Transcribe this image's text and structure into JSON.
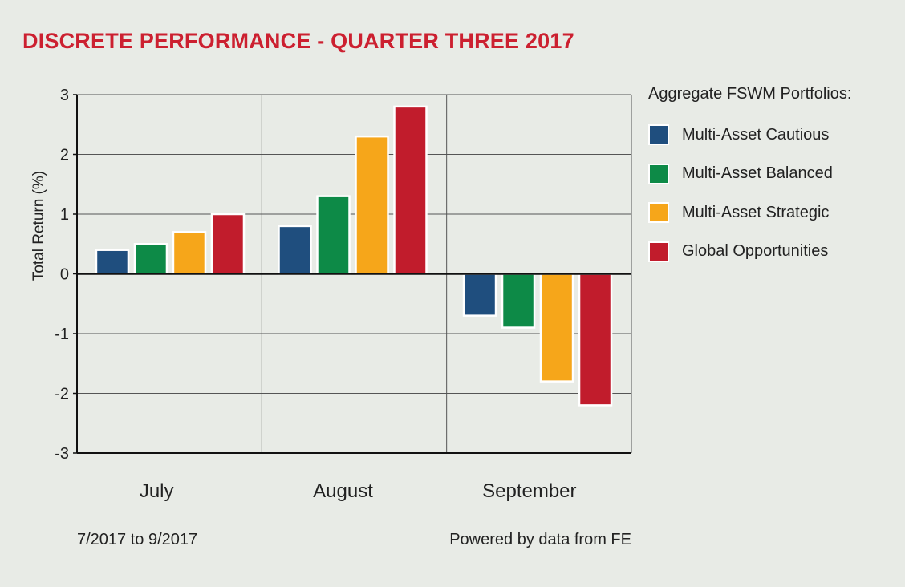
{
  "colors": {
    "title": "#cc2030",
    "background": "#e8ebe6",
    "axis": "#111111",
    "grid": "#555555",
    "bar_border": "#ffffff"
  },
  "footer": {
    "date_range": "7/2017 to 9/2017",
    "source": "Powered by data from FE"
  },
  "chart_data": {
    "type": "bar",
    "title": "DISCRETE PERFORMANCE - QUARTER THREE 2017",
    "ylabel": "Total Return (%)",
    "xlabel": "",
    "ylim": [
      -3,
      3
    ],
    "yticks": [
      3,
      2,
      1,
      0,
      -1,
      -2,
      -3
    ],
    "ytick_labels": [
      "3",
      "2",
      "1",
      "0",
      "-1",
      "-2",
      "-3"
    ],
    "grid": true,
    "legend_title": "Aggregate FSWM Portfolios:",
    "legend_position": "right",
    "categories": [
      "July",
      "August",
      "September"
    ],
    "series": [
      {
        "name": "Multi-Asset Cautious",
        "color": "#1f4e7e",
        "values": [
          0.4,
          0.8,
          -0.7
        ]
      },
      {
        "name": "Multi-Asset Balanced",
        "color": "#0d8a47",
        "values": [
          0.5,
          1.3,
          -0.9
        ]
      },
      {
        "name": "Multi-Asset Strategic",
        "color": "#f6a61a",
        "values": [
          0.7,
          2.3,
          -1.8
        ]
      },
      {
        "name": "Global Opportunities",
        "color": "#c11c2c",
        "values": [
          1.0,
          2.8,
          -2.2
        ]
      }
    ]
  }
}
